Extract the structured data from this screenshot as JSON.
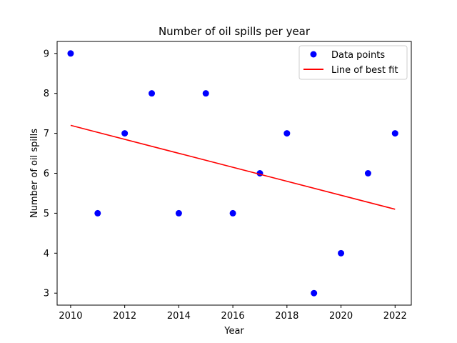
{
  "chart_data": {
    "type": "scatter",
    "title": "Number of oil spills per year",
    "xlabel": "Year",
    "ylabel": "Number of oil spills",
    "xlim": [
      2009.5,
      2022.6
    ],
    "ylim": [
      2.7,
      9.3
    ],
    "xticks": [
      2010,
      2012,
      2014,
      2016,
      2018,
      2020,
      2022
    ],
    "yticks": [
      3,
      4,
      5,
      6,
      7,
      8,
      9
    ],
    "grid": false,
    "legend_position": "top-right",
    "series": [
      {
        "name": "Data points",
        "kind": "scatter",
        "color": "#0000ff",
        "x": [
          2010,
          2011,
          2012,
          2013,
          2014,
          2015,
          2016,
          2017,
          2018,
          2019,
          2020,
          2021,
          2022
        ],
        "y": [
          9,
          5,
          7,
          8,
          5,
          8,
          5,
          6,
          7,
          3,
          4,
          6,
          7
        ]
      },
      {
        "name": "Line of best fit",
        "kind": "line",
        "color": "#ff0000",
        "x": [
          2010,
          2022
        ],
        "y": [
          7.2,
          5.1
        ]
      }
    ]
  }
}
